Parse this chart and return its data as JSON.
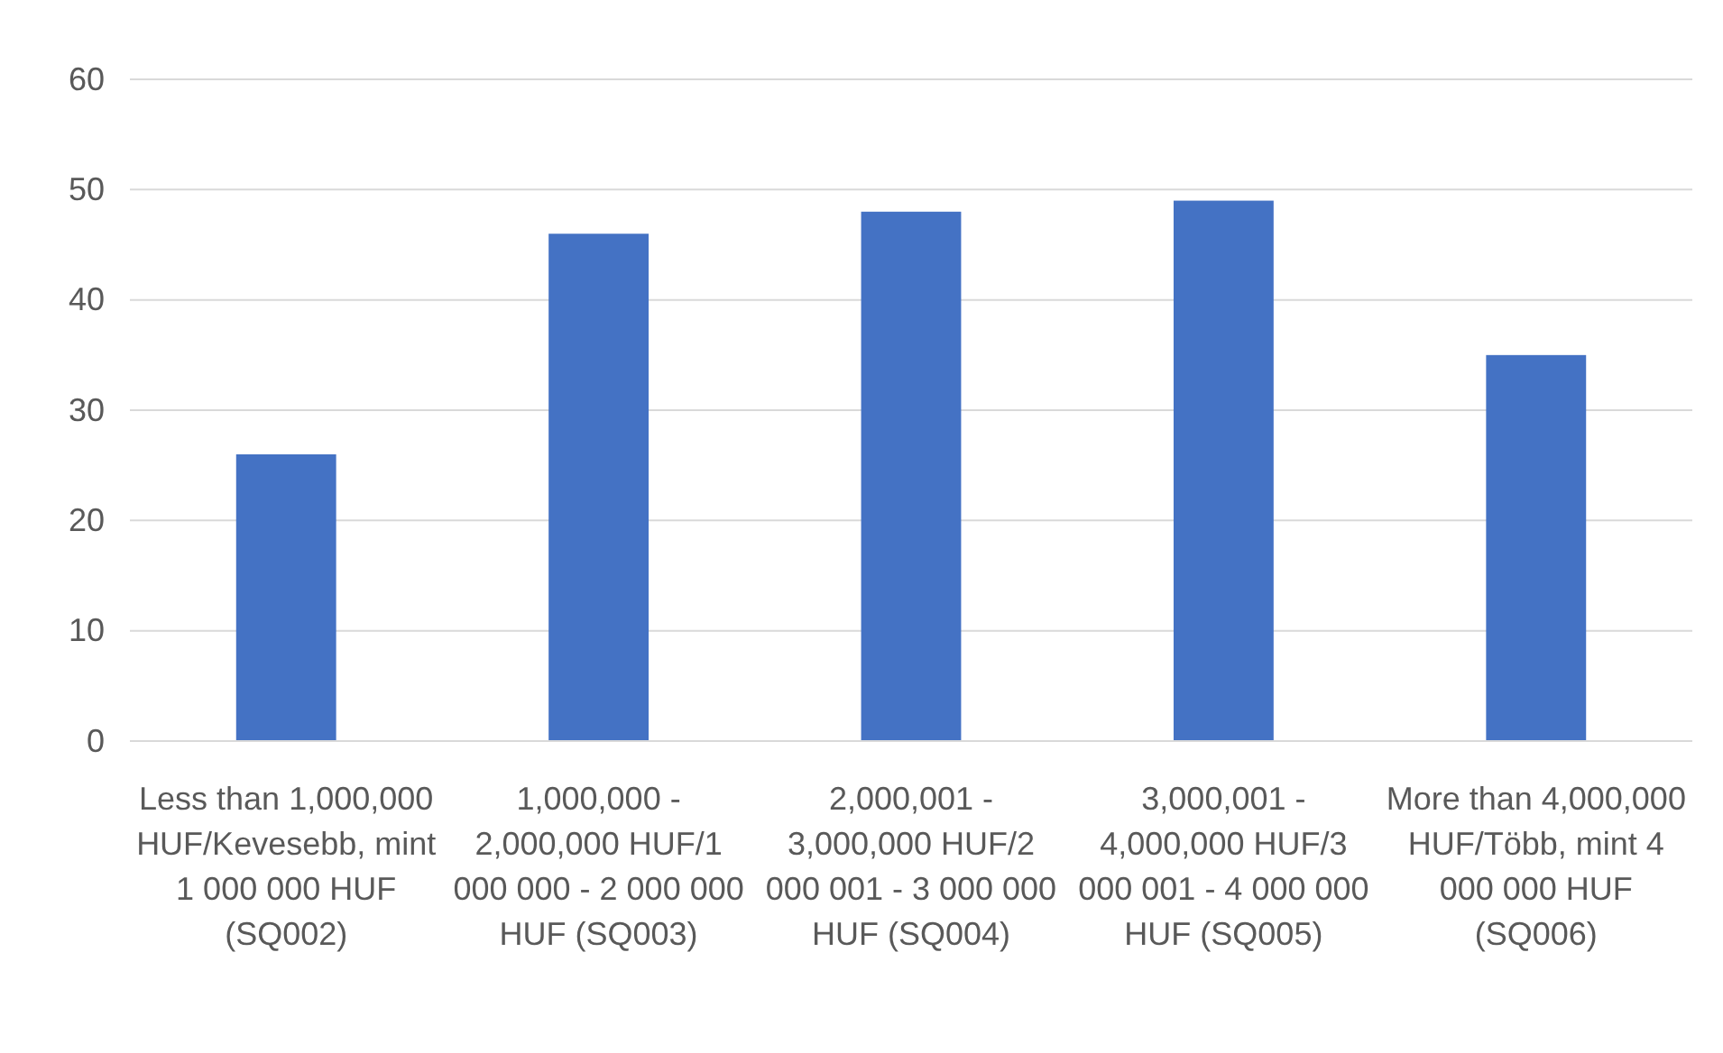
{
  "chart_data": {
    "type": "bar",
    "categories": [
      "Less than 1,000,000 HUF/Kevesebb, mint 1 000 000 HUF (SQ002)",
      "1,000,000 - 2,000,000 HUF/1 000 000 - 2 000 000 HUF (SQ003)",
      "2,000,001 - 3,000,000 HUF/2 000 001 - 3 000 000 HUF (SQ004)",
      "3,000,001 - 4,000,000 HUF/3 000 001 - 4 000 000 HUF (SQ005)",
      "More than 4,000,000 HUF/Több, mint 4 000 000 HUF (SQ006)"
    ],
    "values": [
      26,
      46,
      48,
      49,
      35
    ],
    "color": "#4472c4",
    "ylim": [
      0,
      60
    ],
    "yticks": [
      0,
      10,
      20,
      30,
      40,
      50,
      60
    ],
    "grid": "y"
  }
}
